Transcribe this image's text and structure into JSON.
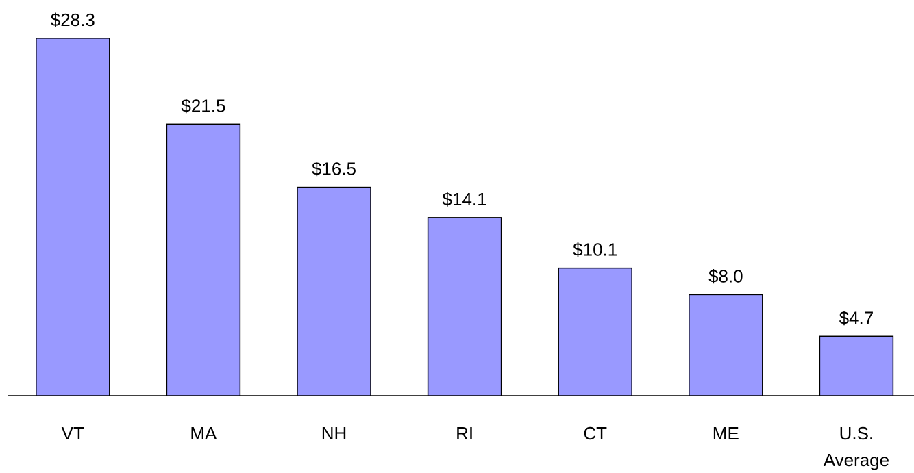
{
  "chart_data": {
    "type": "bar",
    "categories": [
      "VT",
      "MA",
      "NH",
      "RI",
      "CT",
      "ME",
      "U.S. Average"
    ],
    "values": [
      28.3,
      21.5,
      16.5,
      14.1,
      10.1,
      8.0,
      4.7
    ],
    "value_labels": [
      "$28.3",
      "$21.5",
      "$16.5",
      "$14.1",
      "$10.1",
      "$8.0",
      "$4.7"
    ],
    "color": "#9999ff"
  }
}
